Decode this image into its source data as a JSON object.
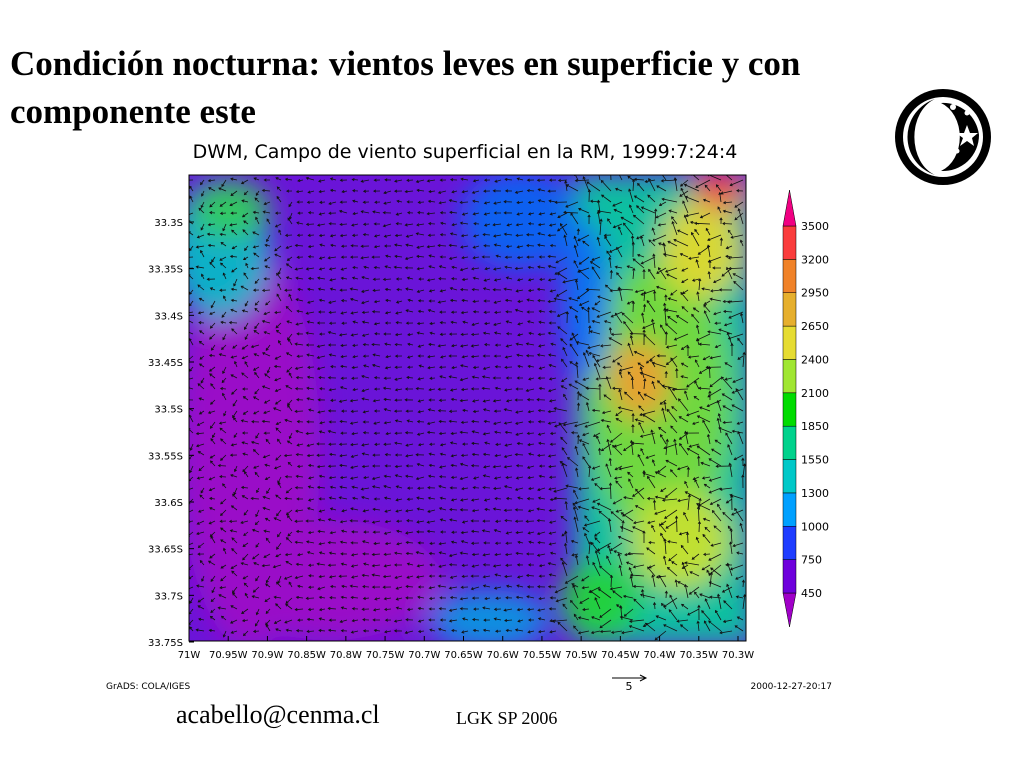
{
  "header": {
    "title": "Condición nocturna: vientos leves en superficie y con componente este"
  },
  "map": {
    "title": "DWM, Campo de viento superficial en la RM, 1999:7:24:4",
    "lat_labels": [
      "33.3S",
      "33.35S",
      "33.4S",
      "33.45S",
      "33.5S",
      "33.55S",
      "33.6S",
      "33.65S",
      "33.7S",
      "33.75S"
    ],
    "lon_labels": [
      "71W",
      "70.95W",
      "70.9W",
      "70.85W",
      "70.8W",
      "70.75W",
      "70.7W",
      "70.65W",
      "70.6W",
      "70.55W",
      "70.5W",
      "70.45W",
      "70.4W",
      "70.35W",
      "70.3W"
    ],
    "colorbar": {
      "levels": [
        450,
        750,
        1000,
        1300,
        1550,
        1850,
        2100,
        2400,
        2650,
        2950,
        3200,
        3500
      ],
      "colors": [
        "#a000c8",
        "#6e00dc",
        "#1e3cff",
        "#00a0ff",
        "#00c8c8",
        "#00d28c",
        "#00dc00",
        "#a0e632",
        "#e6dc32",
        "#e6af2d",
        "#f08228",
        "#fa3c3c",
        "#f00082"
      ]
    },
    "vector_scale": 5,
    "footer_left": "GrADS: COLA/IGES",
    "footer_right": "2000-12-27-20:17"
  },
  "footer": {
    "email": "acabello@cenma.cl",
    "credit": "LGK SP 2006"
  }
}
